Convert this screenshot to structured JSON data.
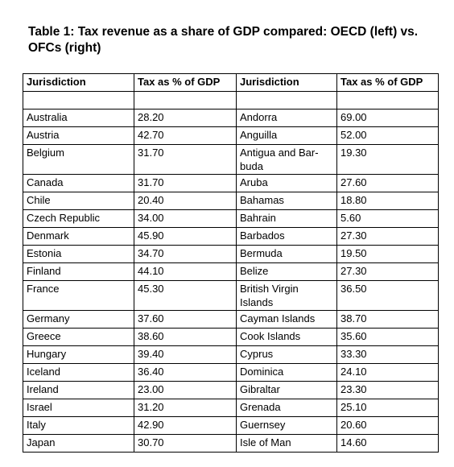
{
  "title": "Table 1: Tax revenue as a share of GDP compared: OECD (left) vs. OFCs (right)",
  "headers": [
    "Jurisdiction",
    "Tax as % of GDP",
    "Jurisdiction",
    "Tax as % of GDP"
  ],
  "rows": [
    {
      "j1": "Australia",
      "v1": "28.20",
      "j2": "Andorra",
      "v2": "69.00"
    },
    {
      "j1": "Austria",
      "v1": "42.70",
      "j2": "Anguilla",
      "v2": "52.00"
    },
    {
      "j1": "Belgium",
      "v1": "31.70",
      "j2": "Antigua and Bar-buda",
      "v2": "19.30"
    },
    {
      "j1": "Canada",
      "v1": "31.70",
      "j2": "Aruba",
      "v2": "27.60"
    },
    {
      "j1": "Chile",
      "v1": "20.40",
      "j2": "Bahamas",
      "v2": "18.80"
    },
    {
      "j1": "Czech Republic",
      "v1": "34.00",
      "j2": "Bahrain",
      "v2": "5.60"
    },
    {
      "j1": "Denmark",
      "v1": "45.90",
      "j2": "Barbados",
      "v2": "27.30"
    },
    {
      "j1": "Estonia",
      "v1": "34.70",
      "j2": "Bermuda",
      "v2": "19.50"
    },
    {
      "j1": "Finland",
      "v1": "44.10",
      "j2": "Belize",
      "v2": "27.30"
    },
    {
      "j1": "France",
      "v1": "45.30",
      "j2": "British Virgin Islands",
      "v2": "36.50"
    },
    {
      "j1": "Germany",
      "v1": "37.60",
      "j2": "Cayman Islands",
      "v2": "38.70"
    },
    {
      "j1": "Greece",
      "v1": "38.60",
      "j2": "Cook Islands",
      "v2": "35.60"
    },
    {
      "j1": "Hungary",
      "v1": "39.40",
      "j2": "Cyprus",
      "v2": "33.30"
    },
    {
      "j1": "Iceland",
      "v1": "36.40",
      "j2": "Dominica",
      "v2": "24.10"
    },
    {
      "j1": "Ireland",
      "v1": "23.00",
      "j2": "Gibraltar",
      "v2": "23.30"
    },
    {
      "j1": "Israel",
      "v1": "31.20",
      "j2": "Grenada",
      "v2": "25.10"
    },
    {
      "j1": "Italy",
      "v1": "42.90",
      "j2": "Guernsey",
      "v2": "20.60"
    },
    {
      "j1": "Japan",
      "v1": "30.70",
      "j2": "Isle of Man",
      "v2": "14.60"
    }
  ]
}
